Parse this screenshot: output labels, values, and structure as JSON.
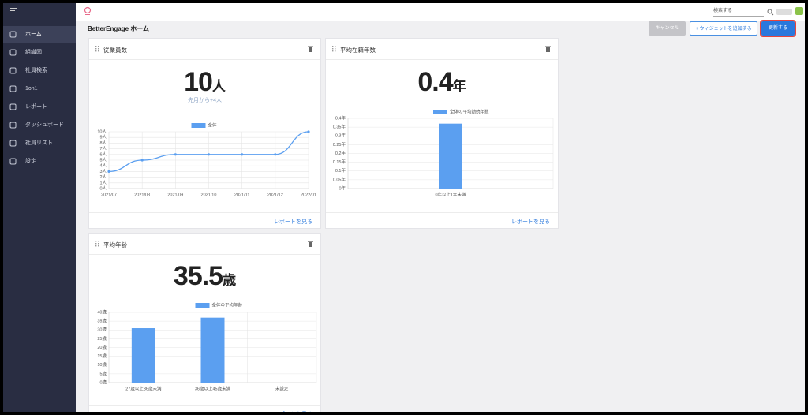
{
  "sidebar": {
    "items": [
      "ホーム",
      "組織図",
      "社員検索",
      "1on1",
      "レポート",
      "ダッシュボード",
      "社員リスト",
      "設定"
    ]
  },
  "topbar": {
    "search_placeholder": "検索する"
  },
  "page": {
    "title": "BetterEngage ホーム",
    "buttons": {
      "cancel": "キャンセル",
      "add": "+ ウィジェットを追加する",
      "update": "更新する"
    }
  },
  "widgets": [
    {
      "title": "従業員数",
      "value": 10,
      "unit": "人",
      "subtitle": "先月から+4人",
      "footer": "レポートを見る",
      "chart": {
        "type": "line",
        "legend": "全体",
        "color": "#5b9ff0",
        "categories": [
          "2021/07",
          "2021/08",
          "2021/09",
          "2021/10",
          "2021/11",
          "2021/12",
          "2022/01"
        ],
        "values": [
          3,
          5,
          6,
          6,
          6,
          6,
          10
        ],
        "ylim": [
          0,
          10
        ],
        "yticks": [
          {
            "value": 0,
            "label": "0人"
          },
          {
            "value": 1,
            "label": "1人"
          },
          {
            "value": 2,
            "label": "2人"
          },
          {
            "value": 3,
            "label": "3人"
          },
          {
            "value": 4,
            "label": "4人"
          },
          {
            "value": 5,
            "label": "5人"
          },
          {
            "value": 6,
            "label": "6人"
          },
          {
            "value": 7,
            "label": "7人"
          },
          {
            "value": 8,
            "label": "8人"
          },
          {
            "value": 9,
            "label": "9人"
          },
          {
            "value": 10,
            "label": "10人"
          }
        ]
      }
    },
    {
      "title": "平均在籍年数",
      "value": 0.4,
      "unit": "年",
      "footer": "レポートを見る",
      "chart": {
        "type": "bar",
        "legend": "全体の平均勤続年数",
        "color": "#5b9ff0",
        "categories": [
          "0年以上1年未満"
        ],
        "values": [
          0.37
        ],
        "ylim": [
          0,
          0.4
        ],
        "yticks": [
          {
            "value": 0,
            "label": "0年"
          },
          {
            "value": 0.05,
            "label": "0.05年"
          },
          {
            "value": 0.1,
            "label": "0.1年"
          },
          {
            "value": 0.15,
            "label": "0.15年"
          },
          {
            "value": 0.2,
            "label": "0.2年"
          },
          {
            "value": 0.25,
            "label": "0.25年"
          },
          {
            "value": 0.3,
            "label": "0.3年"
          },
          {
            "value": 0.35,
            "label": "0.35年"
          },
          {
            "value": 0.4,
            "label": "0.4年"
          }
        ]
      }
    },
    {
      "title": "平均年齢",
      "value": 35.5,
      "unit": "歳",
      "footer": "レポートを見る",
      "chart": {
        "type": "bar",
        "legend": "全体の平均年齢",
        "color": "#5b9ff0",
        "categories": [
          "27歳以上36歳未満",
          "36歳以上45歳未満",
          "未設定"
        ],
        "values": [
          31,
          37,
          0
        ],
        "ylim": [
          0,
          40
        ],
        "yticks": [
          {
            "value": 0,
            "label": "0歳"
          },
          {
            "value": 5,
            "label": "5歳"
          },
          {
            "value": 10,
            "label": "10歳"
          },
          {
            "value": 15,
            "label": "15歳"
          },
          {
            "value": 20,
            "label": "20歳"
          },
          {
            "value": 25,
            "label": "25歳"
          },
          {
            "value": 30,
            "label": "30歳"
          },
          {
            "value": 35,
            "label": "35歳"
          },
          {
            "value": 40,
            "label": "40歳"
          }
        ]
      }
    }
  ]
}
